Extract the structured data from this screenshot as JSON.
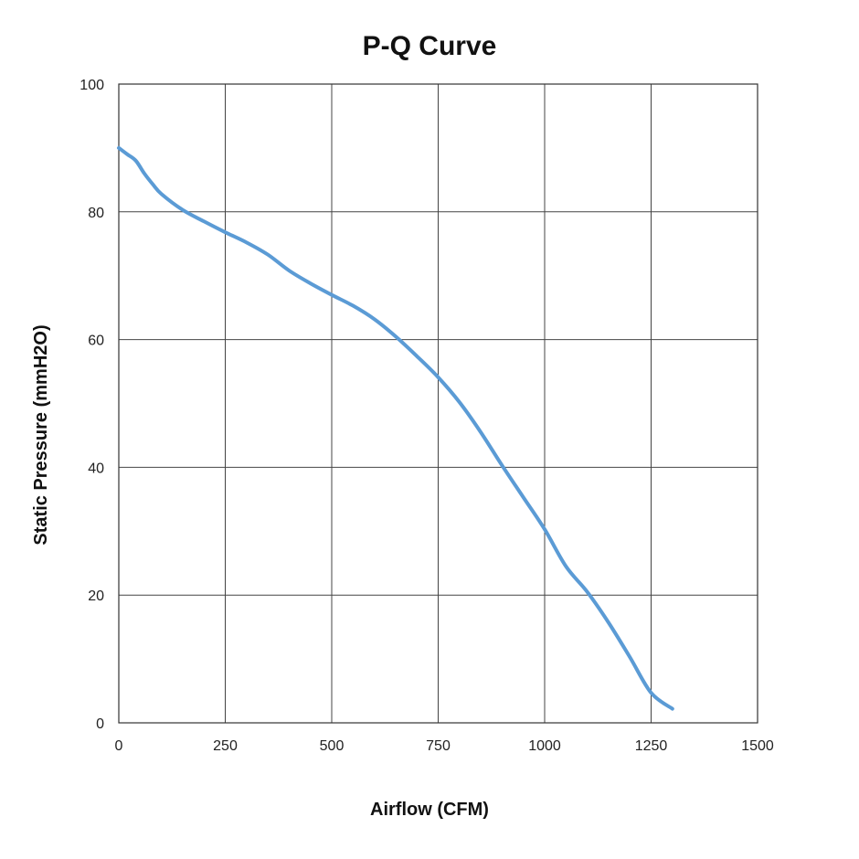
{
  "chart_data": {
    "type": "line",
    "title": "P-Q Curve",
    "xlabel": "Airflow (CFM)",
    "ylabel": "Static Pressure (mmH2O)",
    "xlim": [
      0,
      1500
    ],
    "ylim": [
      0,
      100
    ],
    "xticks": [
      0,
      250,
      500,
      750,
      1000,
      1250,
      1500
    ],
    "yticks": [
      0,
      20,
      40,
      60,
      80,
      100
    ],
    "xtick_labels": [
      "0",
      "250",
      "500",
      "750",
      "1000",
      "1250",
      "1500"
    ],
    "ytick_labels": [
      "0",
      "20",
      "40",
      "60",
      "80",
      "100"
    ],
    "grid": true,
    "legend": "none",
    "line_color": "#5b9bd5",
    "series": [
      {
        "x": [
          0,
          20,
          40,
          60,
          80,
          100,
          150,
          200,
          250,
          300,
          350,
          400,
          450,
          500,
          550,
          600,
          650,
          700,
          750,
          800,
          850,
          900,
          950,
          1000,
          1050,
          1100,
          1150,
          1200,
          1250,
          1300
        ],
        "y": [
          90,
          89,
          88,
          86,
          84.3,
          82.8,
          80.3,
          78.5,
          76.8,
          75.2,
          73.3,
          70.8,
          68.8,
          67,
          65.3,
          63.2,
          60.5,
          57.4,
          54.1,
          50.2,
          45.5,
          40.3,
          35.3,
          30.3,
          24.5,
          20.5,
          15.7,
          10.3,
          4.7,
          2.2
        ]
      }
    ]
  }
}
